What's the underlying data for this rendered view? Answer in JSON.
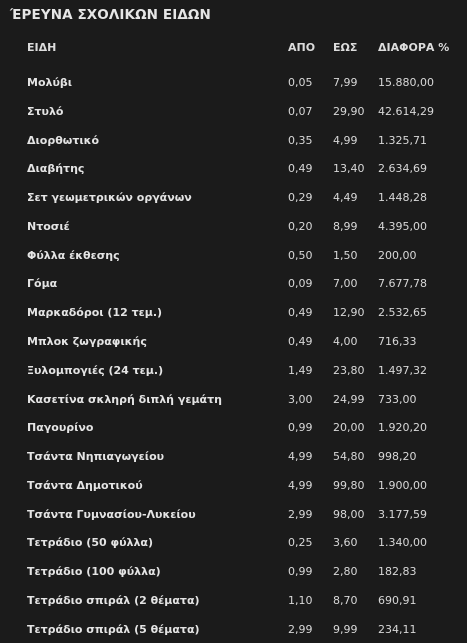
{
  "title": "ΈΡΕΥΝΑ ΣΧΟΛΙΚΩΝ ΕΙΔΩΝ",
  "headers": {
    "item": "ΕΙΔΗ",
    "from": "ΑΠΟ",
    "to": "ΕΩΣ",
    "diff": "ΔΙΑΦΟΡΑ %"
  },
  "rows": [
    {
      "item": "Μολύβι",
      "from": "0,05",
      "to": "7,99",
      "diff": "15.880,00"
    },
    {
      "item": "Στυλό",
      "from": "0,07",
      "to": "29,90",
      "diff": "42.614,29"
    },
    {
      "item": "Διορθωτικό",
      "from": "0,35",
      "to": "4,99",
      "diff": "1.325,71"
    },
    {
      "item": "Διαβήτης",
      "from": "0,49",
      "to": "13,40",
      "diff": "2.634,69"
    },
    {
      "item": "Σετ γεωμετρικών οργάνων",
      "from": "0,29",
      "to": "4,49",
      "diff": "1.448,28"
    },
    {
      "item": "Ντοσιέ",
      "from": "0,20",
      "to": "8,99",
      "diff": "4.395,00"
    },
    {
      "item": "Φύλλα έκθεσης",
      "from": "0,50",
      "to": "1,50",
      "diff": "200,00"
    },
    {
      "item": "Γόμα",
      "from": "0,09",
      "to": "7,00",
      "diff": "7.677,78"
    },
    {
      "item": "Μαρκαδόροι (12 τεμ.)",
      "from": "0,49",
      "to": "12,90",
      "diff": "2.532,65"
    },
    {
      "item": "Μπλοκ ζωγραφικής",
      "from": "0,49",
      "to": "4,00",
      "diff": "716,33"
    },
    {
      "item": "Ξυλομπογιές (24 τεμ.)",
      "from": "1,49",
      "to": "23,80",
      "diff": "1.497,32"
    },
    {
      "item": "Κασετίνα σκληρή διπλή γεμάτη",
      "from": "3,00",
      "to": "24,99",
      "diff": "733,00"
    },
    {
      "item": "Παγουρίνο",
      "from": "0,99",
      "to": "20,00",
      "diff": "1.920,20"
    },
    {
      "item": "Τσάντα Νηπιαγωγείου",
      "from": "4,99",
      "to": "54,80",
      "diff": "998,20"
    },
    {
      "item": "Τσάντα Δημοτικού",
      "from": "4,99",
      "to": "99,80",
      "diff": "1.900,00"
    },
    {
      "item": "Τσάντα Γυμνασίου-Λυκείου",
      "from": "2,99",
      "to": "98,00",
      "diff": "3.177,59"
    },
    {
      "item": "Τετράδιο (50 φύλλα)",
      "from": "0,25",
      "to": "3,60",
      "diff": "1.340,00"
    },
    {
      "item": "Τετράδιο (100 φύλλα)",
      "from": "0,99",
      "to": "2,80",
      "diff": "182,83"
    },
    {
      "item": "Τετράδιο σπιράλ (2 θέματα)",
      "from": "1,10",
      "to": "8,70",
      "diff": "690,91"
    },
    {
      "item": "Τετράδιο σπιράλ (5 θέματα)",
      "from": "2,99",
      "to": "9,99",
      "diff": "234,11"
    }
  ]
}
